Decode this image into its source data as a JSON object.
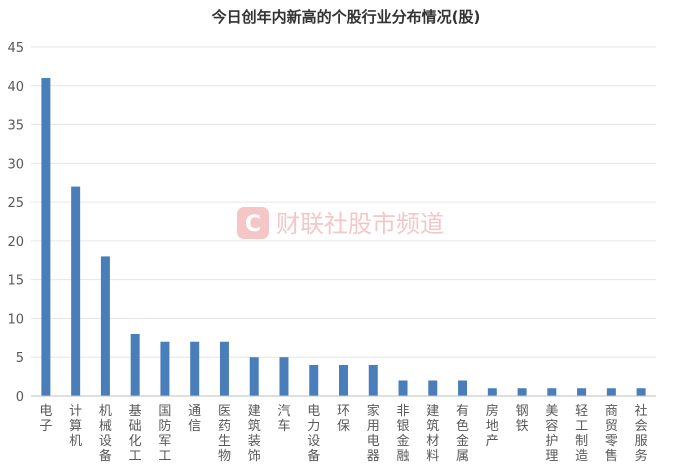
{
  "chart_data": {
    "type": "bar",
    "title": "今日创年内新高的个股行业分布情况(股)",
    "xlabel": "",
    "ylabel": "",
    "ylim": [
      0,
      45
    ],
    "yticks": [
      0,
      5,
      10,
      15,
      20,
      25,
      30,
      35,
      40,
      45
    ],
    "grid": true,
    "legend": "none",
    "bar_color": "#4a7ebb",
    "categories": [
      "电子",
      "计算机",
      "机械设备",
      "基础化工",
      "国防军工",
      "通信",
      "医药生物",
      "建筑装饰",
      "汽车",
      "电力设备",
      "环保",
      "家用电器",
      "非银金融",
      "建筑材料",
      "有色金属",
      "房地产",
      "钢铁",
      "美容护理",
      "轻工制造",
      "商贸零售",
      "社会服务"
    ],
    "values": [
      41,
      27,
      18,
      8,
      7,
      7,
      7,
      5,
      5,
      4,
      4,
      4,
      2,
      2,
      2,
      1,
      1,
      1,
      1,
      1,
      1
    ]
  },
  "watermark": {
    "logo_letter": "C",
    "text": "财联社股市频道",
    "color": "#f3c7c7"
  }
}
